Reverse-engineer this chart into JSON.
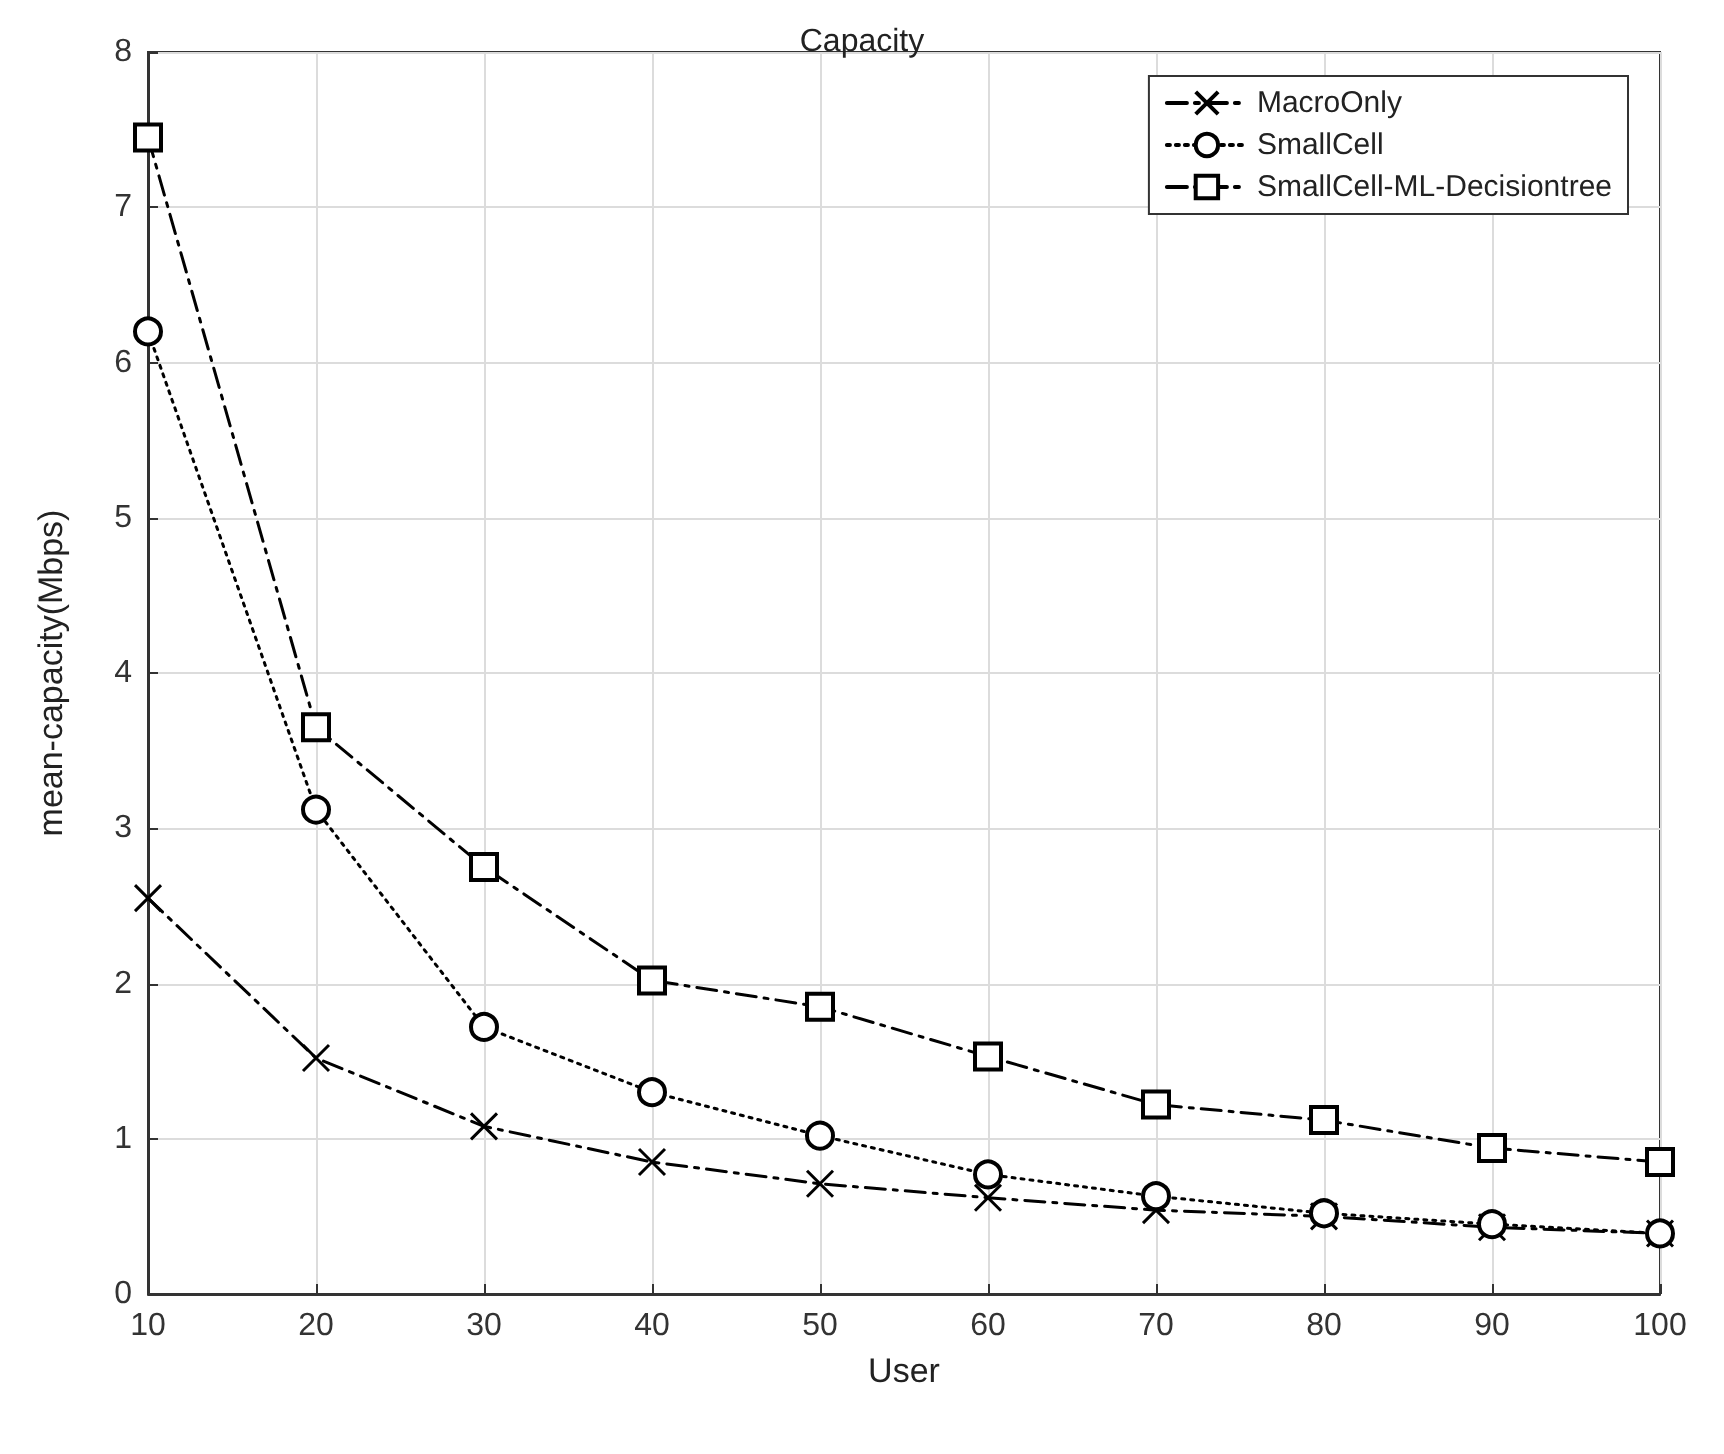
{
  "chart_data": {
    "type": "line",
    "title": "Capacity",
    "xlabel": "User",
    "ylabel": "mean-capacity(Mbps)",
    "x": [
      10,
      20,
      30,
      40,
      50,
      60,
      70,
      80,
      90,
      100
    ],
    "series": [
      {
        "name": "MacroOnly",
        "color": "#000000",
        "marker": "cross",
        "line_style": "dashed",
        "values": [
          2.55,
          1.52,
          1.08,
          0.85,
          0.71,
          0.62,
          0.54,
          0.5,
          0.43,
          0.39
        ]
      },
      {
        "name": "SmallCell",
        "color": "#000000",
        "marker": "circle",
        "line_style": "dotted",
        "values": [
          6.2,
          3.12,
          1.72,
          1.3,
          1.02,
          0.77,
          0.63,
          0.52,
          0.45,
          0.39
        ]
      },
      {
        "name": "SmallCell-ML-Decisiontree",
        "color": "#000000",
        "marker": "square",
        "line_style": "dashed",
        "values": [
          7.45,
          3.65,
          2.75,
          2.02,
          1.85,
          1.53,
          1.22,
          1.12,
          0.94,
          0.85
        ]
      }
    ],
    "xlim": [
      10,
      100
    ],
    "xticks": [
      10,
      20,
      30,
      40,
      50,
      60,
      70,
      80,
      90,
      100
    ],
    "ylim": [
      0,
      8
    ],
    "yticks": [
      0,
      1,
      2,
      3,
      4,
      5,
      6,
      7,
      8
    ],
    "grid": true,
    "legend": "top right"
  }
}
